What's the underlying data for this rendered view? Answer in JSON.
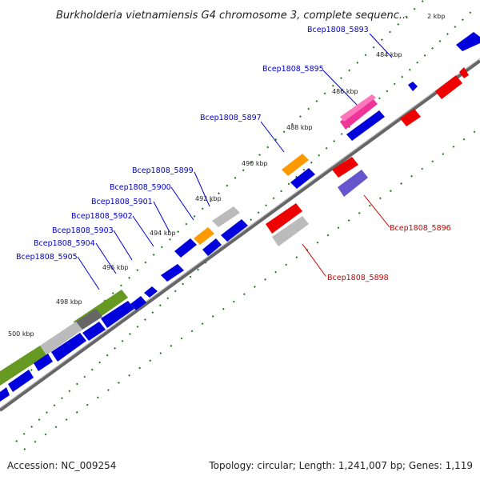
{
  "title": "Burkholderia vietnamiensis G4 chromosome 3, complete sequenc...",
  "footer": {
    "accession": "Accession: NC_009254",
    "info": "Topology: circular; Length: 1,241,007 bp; Genes: 1,119"
  },
  "ticks": [
    "2 kbp",
    "484 kbp",
    "486 kbp",
    "488 kbp",
    "490 kbp",
    "492 kbp",
    "494 kbp",
    "496 kbp",
    "498 kbp",
    "500 kbp"
  ],
  "gene_labels_forward": [
    "Bcep1808_5893",
    "Bcep1808_5895",
    "Bcep1808_5897",
    "Bcep1808_5899",
    "Bcep1808_5900",
    "Bcep1808_5901",
    "Bcep1808_5902",
    "Bcep1808_5903",
    "Bcep1808_5904",
    "Bcep1808_5905"
  ],
  "gene_labels_reverse": [
    "Bcep1808_5896",
    "Bcep1808_5898"
  ],
  "colors": {
    "forward_gene": "#0000dd",
    "reverse_gene": "#ee0000",
    "backbone": "#888888",
    "tick": "#1e7a1e",
    "label_forward": "#0000cc",
    "label_reverse": "#cc0000",
    "highlight_orange": "#ff9900",
    "highlight_pink": "#ee3399",
    "highlight_purple": "#6655cc",
    "highlight_olive": "#669922",
    "highlight_gray": "#bbbbbb",
    "highlight_darkgray": "#666666"
  }
}
